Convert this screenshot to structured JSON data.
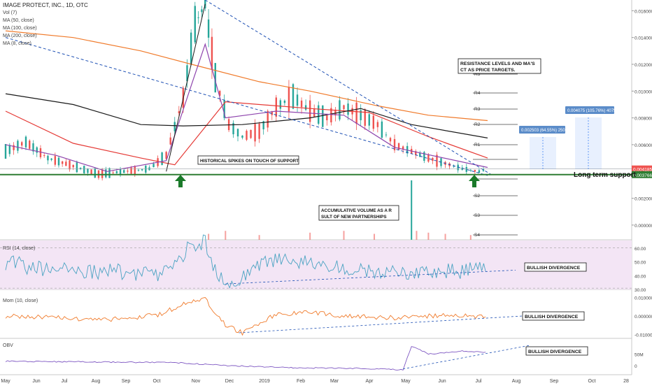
{
  "chart_data": {
    "type": "candlestick",
    "title": "IMAGE PROTECT, INC., 1D, OTC",
    "indicator_legend": [
      "Vol (7)",
      "MA (50, close)",
      "MA (100, close)",
      "MA (200, close)",
      "MA (8, close)"
    ],
    "x_ticks": [
      "May",
      "Jun",
      "Jul",
      "Aug",
      "Sep",
      "Oct",
      "Nov",
      "Dec",
      "2019",
      "Feb",
      "Mar",
      "Apr",
      "May",
      "Jun",
      "Jul",
      "Aug",
      "Sep",
      "Oct",
      "28"
    ],
    "price_axis": {
      "ylim": [
        -0.0011,
        0.0168
      ],
      "ticks": [
        "0.016000",
        "0.014000",
        "0.012000",
        "0.010000",
        "0.008000",
        "0.006000",
        "0.004000",
        "0.002000",
        "0.000000"
      ],
      "last_price": "0.004185",
      "support_price": "0.003766"
    },
    "price_series": [
      {
        "d": 0,
        "v": 0.0055
      },
      {
        "d": 12,
        "v": 0.0062
      },
      {
        "d": 25,
        "v": 0.005
      },
      {
        "d": 40,
        "v": 0.0044
      },
      {
        "d": 55,
        "v": 0.0038
      },
      {
        "d": 70,
        "v": 0.004
      },
      {
        "d": 85,
        "v": 0.0042
      },
      {
        "d": 95,
        "v": 0.0052
      },
      {
        "d": 105,
        "v": 0.0095
      },
      {
        "d": 112,
        "v": 0.015
      },
      {
        "d": 118,
        "v": 0.0165
      },
      {
        "d": 124,
        "v": 0.011
      },
      {
        "d": 132,
        "v": 0.0075
      },
      {
        "d": 140,
        "v": 0.0066
      },
      {
        "d": 150,
        "v": 0.007
      },
      {
        "d": 160,
        "v": 0.0088
      },
      {
        "d": 170,
        "v": 0.0096
      },
      {
        "d": 180,
        "v": 0.0085
      },
      {
        "d": 190,
        "v": 0.008
      },
      {
        "d": 200,
        "v": 0.0088
      },
      {
        "d": 210,
        "v": 0.0082
      },
      {
        "d": 220,
        "v": 0.0075
      },
      {
        "d": 230,
        "v": 0.006
      },
      {
        "d": 240,
        "v": 0.0055
      },
      {
        "d": 250,
        "v": 0.005
      },
      {
        "d": 260,
        "v": 0.0046
      },
      {
        "d": 270,
        "v": 0.0042
      },
      {
        "d": 280,
        "v": 0.004
      },
      {
        "d": 285,
        "v": 0.0042
      }
    ],
    "moving_averages": [
      {
        "name": "MA (50, close)",
        "color": "#e53935",
        "points": [
          [
            0,
            0.0085
          ],
          [
            40,
            0.0061
          ],
          [
            80,
            0.005
          ],
          [
            100,
            0.0045
          ],
          [
            130,
            0.0092
          ],
          [
            180,
            0.0087
          ],
          [
            215,
            0.0084
          ],
          [
            250,
            0.0066
          ],
          [
            285,
            0.005
          ]
        ]
      },
      {
        "name": "MA (100, close)",
        "color": "#1a1a1a",
        "points": [
          [
            0,
            0.0098
          ],
          [
            40,
            0.009
          ],
          [
            80,
            0.0075
          ],
          [
            105,
            0.0074
          ],
          [
            140,
            0.0075
          ],
          [
            180,
            0.008
          ],
          [
            210,
            0.0087
          ],
          [
            240,
            0.0075
          ],
          [
            285,
            0.0065
          ]
        ]
      },
      {
        "name": "MA (200, close)",
        "color": "#f07a2a",
        "points": [
          [
            0,
            0.0145
          ],
          [
            40,
            0.014
          ],
          [
            80,
            0.013
          ],
          [
            110,
            0.012
          ],
          [
            150,
            0.0107
          ],
          [
            180,
            0.01
          ],
          [
            220,
            0.0089
          ],
          [
            250,
            0.0082
          ],
          [
            285,
            0.0078
          ]
        ]
      },
      {
        "name": "MA (8, close)",
        "color": "#8e44ad",
        "points": [
          [
            0,
            0.006
          ],
          [
            30,
            0.0052
          ],
          [
            60,
            0.004
          ],
          [
            95,
            0.0048
          ],
          [
            110,
            0.0105
          ],
          [
            118,
            0.0135
          ],
          [
            130,
            0.008
          ],
          [
            160,
            0.0085
          ],
          [
            200,
            0.0082
          ],
          [
            230,
            0.0058
          ],
          [
            285,
            0.0043
          ]
        ]
      }
    ],
    "volume_series": [
      {
        "d": 120,
        "v": 0.1
      },
      {
        "d": 130,
        "v": 0.15
      },
      {
        "d": 150,
        "v": 0.08
      },
      {
        "d": 180,
        "v": 0.12
      },
      {
        "d": 200,
        "v": 0.15
      },
      {
        "d": 218,
        "v": 0.1
      },
      {
        "d": 240,
        "v": 1.0
      },
      {
        "d": 243,
        "v": 0.15
      },
      {
        "d": 250,
        "v": 0.12
      },
      {
        "d": 260,
        "v": 0.1
      },
      {
        "d": 275,
        "v": 0.08
      }
    ],
    "pivot_levels": [
      "R5",
      "R4",
      "R3",
      "R2",
      "R1",
      "S2",
      "S3",
      "S4"
    ],
    "rsi": {
      "label": "RSI (14, close)",
      "ylim": [
        30,
        65
      ],
      "ticks": [
        "60.00",
        "50.00",
        "40.00",
        "30.00"
      ],
      "values": [
        [
          0,
          50
        ],
        [
          15,
          46
        ],
        [
          30,
          44
        ],
        [
          50,
          42
        ],
        [
          70,
          43
        ],
        [
          90,
          40
        ],
        [
          100,
          50
        ],
        [
          110,
          62
        ],
        [
          118,
          64
        ],
        [
          125,
          40
        ],
        [
          135,
          35
        ],
        [
          150,
          48
        ],
        [
          170,
          52
        ],
        [
          190,
          47
        ],
        [
          210,
          45
        ],
        [
          230,
          42
        ],
        [
          250,
          44
        ],
        [
          270,
          43
        ],
        [
          285,
          45
        ]
      ]
    },
    "momentum": {
      "label": "Mom (10, close)",
      "ticks": [
        "0.010000",
        "0.000000",
        "-0.010000"
      ],
      "values": [
        [
          0,
          0.0
        ],
        [
          30,
          -0.001
        ],
        [
          60,
          -0.002
        ],
        [
          90,
          0.0005
        ],
        [
          110,
          0.008
        ],
        [
          118,
          0.009
        ],
        [
          130,
          -0.005
        ],
        [
          140,
          -0.009
        ],
        [
          160,
          0.001
        ],
        [
          180,
          0.002
        ],
        [
          200,
          0.0
        ],
        [
          230,
          -0.001
        ],
        [
          260,
          0.0005
        ],
        [
          285,
          -0.0003
        ]
      ]
    },
    "obv": {
      "label": "OBV",
      "ticks": [
        "50M",
        "0"
      ],
      "values": [
        [
          0,
          0.35
        ],
        [
          60,
          0.32
        ],
        [
          100,
          0.3
        ],
        [
          130,
          0.2
        ],
        [
          170,
          0.12
        ],
        [
          210,
          0.1
        ],
        [
          235,
          0.05
        ],
        [
          240,
          0.88
        ],
        [
          250,
          0.6
        ],
        [
          270,
          0.7
        ],
        [
          285,
          0.65
        ]
      ]
    },
    "annotations": {
      "resistance_note": "RESISTANCE LEVELS AND MA'S ACT AS PRICE TARGETS.",
      "spikes_note": "HISTORICAL SPIKES ON TOUCH OF SUPPORT",
      "volume_note": "ACCUMULATIVE VOLUME AS A RESULT OF NEW PARTNERSHIPS",
      "support_label": "Long term support",
      "target1": "0.002503 (64.55%) 2503",
      "target2": "0.004075 (105.76%) 4075",
      "divergence_label": "BULLISH DIVERGENCE"
    },
    "colors": {
      "up": "#26a69a",
      "down": "#ef5350",
      "support_line": "#2e7d32",
      "rsi_band": "#f3e5f5",
      "momentum": "#f07a2a",
      "obv": "#7e57c2",
      "trendline": "#1e50b4"
    }
  }
}
